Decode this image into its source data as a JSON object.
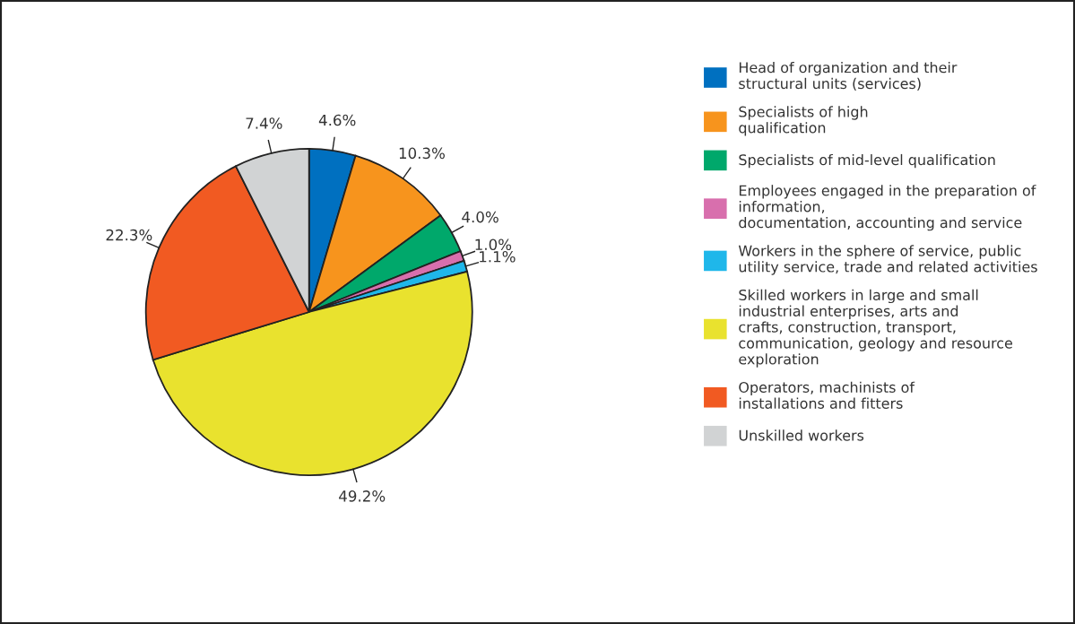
{
  "chart_data": {
    "type": "pie",
    "categories": [
      "Head of organization and their\nstructural units (services)",
      "Specialists of high\nqualification",
      "Specialists of mid-level qualification",
      "Employees engaged in the preparation of\ninformation,\ndocumentation, accounting and service",
      "Workers in the sphere of service, public\nutility service, trade and related activities",
      "Skilled workers in large and small\nindustrial enterprises, arts and\ncrafts, construction, transport,\ncommunication, geology and resource\nexploration",
      "Operators, machinists of\ninstallations and fitters",
      "Unskilled workers"
    ],
    "values": [
      4.6,
      10.3,
      4.0,
      1.0,
      1.1,
      49.2,
      22.3,
      7.4
    ],
    "value_labels": [
      "4.6%",
      "10.3%",
      "4.0%",
      "1.0%",
      "1.1%",
      "49.2%",
      "22.3%",
      "7.4%"
    ],
    "colors": [
      "#0070c0",
      "#f7941d",
      "#00a86b",
      "#d86fad",
      "#1fb7ea",
      "#e9e22e",
      "#f15a22",
      "#d1d3d4"
    ],
    "legend": "right"
  }
}
